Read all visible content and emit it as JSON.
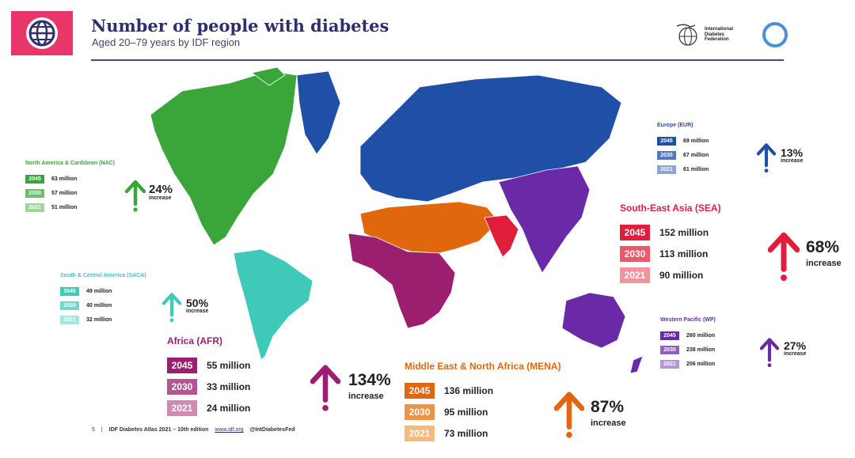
{
  "header": {
    "title": "Number of people with diabetes",
    "subtitle": "Aged 20–79 years by IDF region",
    "icon": "globe-icon",
    "logo_text": [
      "International",
      "Diabetes",
      "Federation"
    ]
  },
  "colors": {
    "NAC": "#3aa63a",
    "SACA": "#3ec9b8",
    "EUR": "#1f4fa6",
    "AFR": "#9b1f6e",
    "MENA": "#e0670e",
    "SEA": "#e01e3c",
    "WP": "#6a2aa8",
    "header": "#e8356a"
  },
  "chart_data": {
    "type": "table",
    "title": "Number of people with diabetes",
    "subtitle": "Aged 20–79 years by IDF region",
    "unit": "million",
    "years": [
      "2045",
      "2030",
      "2021"
    ],
    "regions": [
      {
        "id": "NAC",
        "name": "North America & Caribbean (NAC)",
        "values": [
          63,
          57,
          51
        ],
        "increase": "24%"
      },
      {
        "id": "SACA",
        "name": "South & Central America (SACA)",
        "values": [
          49,
          40,
          32
        ],
        "increase": "50%"
      },
      {
        "id": "EUR",
        "name": "Europe (EUR)",
        "values": [
          69,
          67,
          61
        ],
        "increase": "13%"
      },
      {
        "id": "SEA",
        "name": "South-East Asia (SEA)",
        "values": [
          152,
          113,
          90
        ],
        "increase": "68%"
      },
      {
        "id": "WP",
        "name": "Western Pacific (WP)",
        "values": [
          260,
          238,
          206
        ],
        "increase": "27%"
      },
      {
        "id": "AFR",
        "name": "Africa (AFR)",
        "values": [
          55,
          33,
          24
        ],
        "increase": "134%"
      },
      {
        "id": "MENA",
        "name": "Middle East & North Africa (MENA)",
        "values": [
          136,
          95,
          73
        ],
        "increase": "87%"
      }
    ],
    "increase_label": "increase"
  },
  "footer": {
    "page": "5",
    "separator": "|",
    "source": "IDF Diabetes Atlas 2021 – 10th edition",
    "url": "www.idf.org",
    "handle": "@IntDiabetesFed"
  }
}
